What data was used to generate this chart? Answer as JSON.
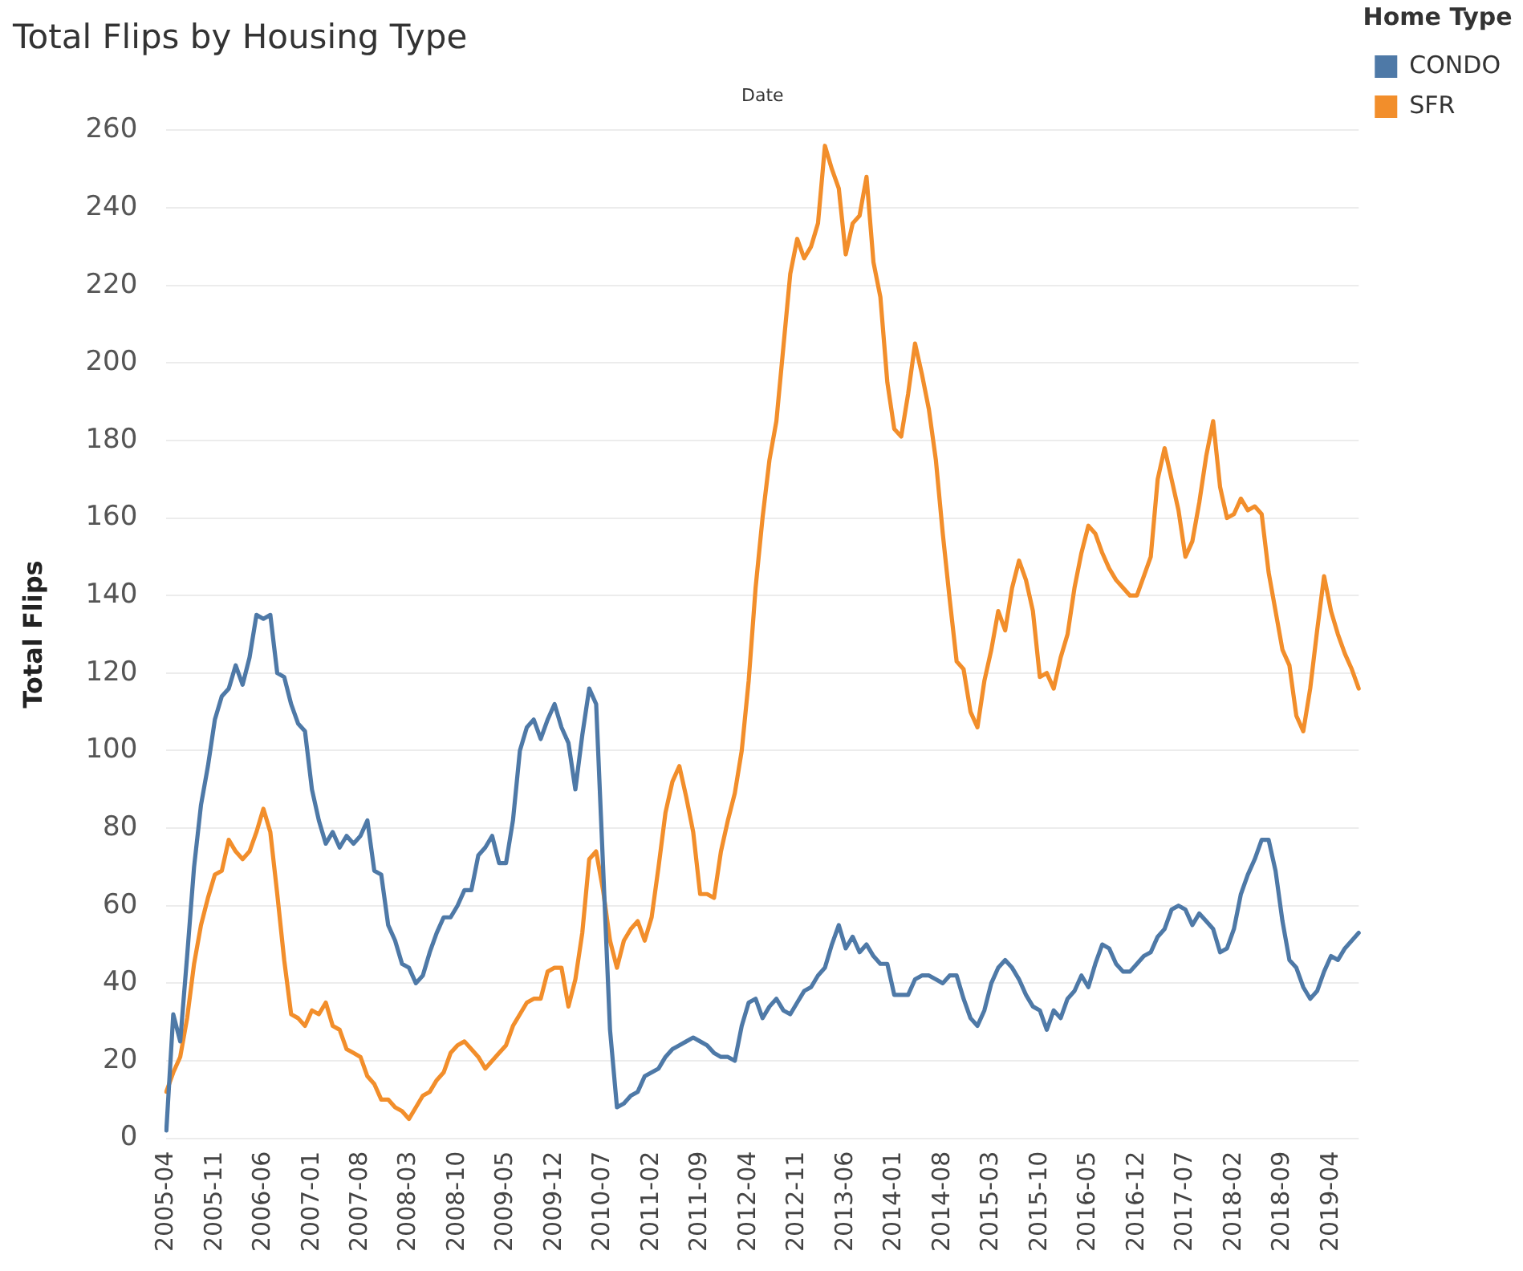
{
  "chart_data": {
    "type": "line",
    "title": "Total Flips by Housing Type",
    "xlabel": "Date",
    "ylabel": "Total Flips",
    "legend_title": "Home Type",
    "categories": [
      "2005-04",
      null,
      null,
      null,
      null,
      null,
      null,
      "2005-11",
      null,
      null,
      null,
      null,
      null,
      null,
      "2006-06",
      null,
      null,
      null,
      null,
      null,
      null,
      "2007-01",
      null,
      null,
      null,
      null,
      null,
      null,
      "2007-08",
      null,
      null,
      null,
      null,
      null,
      null,
      "2008-03",
      null,
      null,
      null,
      null,
      null,
      null,
      "2008-10",
      null,
      null,
      null,
      null,
      null,
      null,
      "2009-05",
      null,
      null,
      null,
      null,
      null,
      null,
      "2009-12",
      null,
      null,
      null,
      null,
      null,
      null,
      "2010-07",
      null,
      null,
      null,
      null,
      null,
      null,
      "2011-02",
      null,
      null,
      null,
      null,
      null,
      null,
      "2011-09",
      null,
      null,
      null,
      null,
      null,
      null,
      "2012-04",
      null,
      null,
      null,
      null,
      null,
      null,
      "2012-11",
      null,
      null,
      null,
      null,
      null,
      null,
      "2013-06",
      null,
      null,
      null,
      null,
      null,
      null,
      "2014-01",
      null,
      null,
      null,
      null,
      null,
      null,
      "2014-08",
      null,
      null,
      null,
      null,
      null,
      null,
      "2015-03",
      null,
      null,
      null,
      null,
      null,
      null,
      "2015-10",
      null,
      null,
      null,
      null,
      null,
      null,
      "2016-05",
      null,
      null,
      null,
      null,
      null,
      null,
      "2016-12",
      null,
      null,
      null,
      null,
      null,
      null,
      "2017-07",
      null,
      null,
      null,
      null,
      null,
      null,
      "2018-02",
      null,
      null,
      null,
      null,
      null,
      null,
      "2018-09",
      null,
      null,
      null,
      null,
      null,
      null,
      "2019-04",
      null,
      null,
      null,
      null
    ],
    "series": [
      {
        "name": "CONDO",
        "color": "#4e79a7",
        "values": [
          2,
          32,
          25,
          47,
          70,
          86,
          96,
          108,
          114,
          116,
          122,
          117,
          124,
          135,
          134,
          135,
          120,
          119,
          112,
          107,
          105,
          90,
          82,
          76,
          79,
          75,
          78,
          76,
          78,
          82,
          69,
          68,
          55,
          51,
          45,
          44,
          40,
          42,
          48,
          53,
          57,
          57,
          60,
          64,
          64,
          73,
          75,
          78,
          71,
          71,
          82,
          100,
          106,
          108,
          103,
          108,
          112,
          106,
          102,
          90,
          104,
          116,
          112,
          70,
          28,
          8,
          9,
          11,
          12,
          16,
          17,
          18,
          21,
          23,
          24,
          25,
          26,
          25,
          24,
          22,
          21,
          21,
          20,
          29,
          35,
          36,
          31,
          34,
          36,
          33,
          32,
          35,
          38,
          39,
          42,
          44,
          50,
          55,
          49,
          52,
          48,
          50,
          47,
          45,
          45,
          37,
          37,
          37,
          41,
          42,
          42,
          41,
          40,
          42,
          42,
          36,
          31,
          29,
          33,
          40,
          44,
          46,
          44,
          41,
          37,
          34,
          33,
          28,
          33,
          31,
          36,
          38,
          42,
          39,
          45,
          50,
          49,
          45,
          43,
          43,
          45,
          47,
          48,
          52,
          54,
          59,
          60,
          59,
          55,
          58,
          56,
          54,
          48,
          49,
          54,
          63,
          68,
          72,
          77,
          77,
          69,
          56,
          46,
          44,
          39,
          36,
          38,
          43,
          47,
          46,
          49,
          51,
          53
        ]
      },
      {
        "name": "SFR",
        "color": "#f28e2b",
        "values": [
          12,
          17,
          21,
          31,
          45,
          55,
          62,
          68,
          69,
          77,
          74,
          72,
          74,
          79,
          85,
          79,
          63,
          46,
          32,
          31,
          29,
          33,
          32,
          35,
          29,
          28,
          23,
          22,
          21,
          16,
          14,
          10,
          10,
          8,
          7,
          5,
          8,
          11,
          12,
          15,
          17,
          22,
          24,
          25,
          23,
          21,
          18,
          20,
          22,
          24,
          29,
          32,
          35,
          36,
          36,
          43,
          44,
          44,
          34,
          41,
          53,
          72,
          74,
          64,
          51,
          44,
          51,
          54,
          56,
          51,
          57,
          70,
          84,
          92,
          96,
          88,
          79,
          63,
          63,
          62,
          74,
          82,
          89,
          100,
          118,
          142,
          160,
          175,
          185,
          204,
          223,
          232,
          227,
          230,
          236,
          256,
          250,
          245,
          228,
          236,
          238,
          248,
          226,
          217,
          195,
          183,
          181,
          192,
          205,
          197,
          188,
          175,
          156,
          139,
          123,
          121,
          110,
          106,
          118,
          126,
          136,
          131,
          142,
          149,
          144,
          136,
          119,
          120,
          116,
          124,
          130,
          142,
          151,
          158,
          156,
          151,
          147,
          144,
          142,
          140,
          140,
          145,
          150,
          170,
          178,
          170,
          162,
          150,
          154,
          164,
          176,
          185,
          168,
          160,
          161,
          165,
          162,
          163,
          161,
          146,
          136,
          126,
          122,
          109,
          105,
          116,
          131,
          145,
          136,
          130,
          125,
          121,
          116
        ]
      }
    ],
    "ylim": [
      0,
      260
    ],
    "yticks": [
      0,
      20,
      40,
      60,
      80,
      100,
      120,
      140,
      160,
      180,
      200,
      220,
      240,
      260
    ],
    "grid": "y",
    "legend": "top right",
    "marker": "none",
    "line_style": "solid"
  }
}
